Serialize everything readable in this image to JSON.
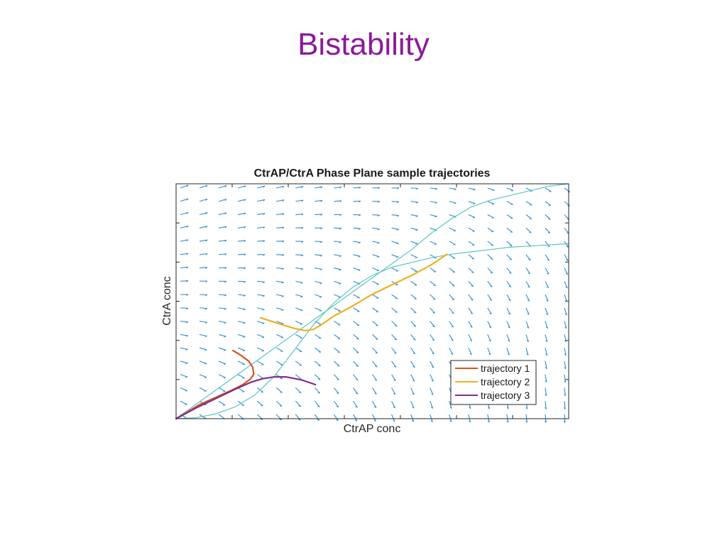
{
  "slide": {
    "title": "Bistability"
  },
  "chart_data": {
    "type": "line",
    "title": "CtrAP/CtrA Phase Plane sample trajectories",
    "xlabel": "CtrAP conc",
    "ylabel": "CtrA conc",
    "xlim": [
      0,
      1
    ],
    "ylim": [
      0,
      1
    ],
    "tick_labels_shown": false,
    "legend_position": "bottom-right",
    "colors": {
      "quiver": "#2a8fd6",
      "nullcline": "#5cc5c0",
      "trajectory_1": "#d9541b",
      "trajectory_2": "#edb120",
      "trajectory_3": "#7e2f8e"
    },
    "nullclines": [
      {
        "x": [
          0,
          0.05,
          0.1,
          0.15,
          0.2,
          0.25,
          0.3,
          0.35,
          0.4,
          0.45,
          0.5,
          0.55,
          0.6,
          0.65,
          0.7,
          0.75,
          0.8,
          0.85,
          0.9,
          0.95,
          1.0
        ],
        "y": [
          0,
          0.004,
          0.02,
          0.05,
          0.1,
          0.18,
          0.29,
          0.4,
          0.49,
          0.56,
          0.61,
          0.645,
          0.665,
          0.685,
          0.7,
          0.71,
          0.72,
          0.73,
          0.735,
          0.74,
          0.745
        ]
      },
      {
        "x": [
          0,
          0.05,
          0.1,
          0.15,
          0.2,
          0.25,
          0.3,
          0.35,
          0.4,
          0.45,
          0.5,
          0.55,
          0.6,
          0.65,
          0.7,
          0.75,
          0.8,
          0.85,
          0.9,
          0.95,
          1.0
        ],
        "y": [
          0,
          0.06,
          0.12,
          0.18,
          0.24,
          0.3,
          0.36,
          0.42,
          0.48,
          0.54,
          0.6,
          0.66,
          0.72,
          0.79,
          0.85,
          0.9,
          0.93,
          0.95,
          0.97,
          0.99,
          1.0
        ]
      }
    ],
    "series": [
      {
        "name": "trajectory 1",
        "x": [
          0.145,
          0.165,
          0.185,
          0.195,
          0.198,
          0.19,
          0.17,
          0.14,
          0.1,
          0.06,
          0.02,
          0.0
        ],
        "y": [
          0.29,
          0.27,
          0.245,
          0.22,
          0.19,
          0.17,
          0.145,
          0.12,
          0.09,
          0.06,
          0.02,
          0.0
        ]
      },
      {
        "name": "trajectory 2",
        "x": [
          0.215,
          0.26,
          0.3,
          0.33,
          0.35,
          0.37,
          0.4,
          0.45,
          0.5,
          0.55,
          0.6,
          0.65,
          0.69
        ],
        "y": [
          0.43,
          0.405,
          0.385,
          0.375,
          0.38,
          0.4,
          0.435,
          0.48,
          0.53,
          0.57,
          0.61,
          0.655,
          0.7
        ]
      },
      {
        "name": "trajectory 3",
        "x": [
          0.355,
          0.32,
          0.28,
          0.25,
          0.22,
          0.19,
          0.15,
          0.1,
          0.05,
          0.0
        ],
        "y": [
          0.145,
          0.165,
          0.178,
          0.178,
          0.17,
          0.155,
          0.125,
          0.085,
          0.045,
          0.0
        ]
      }
    ]
  }
}
